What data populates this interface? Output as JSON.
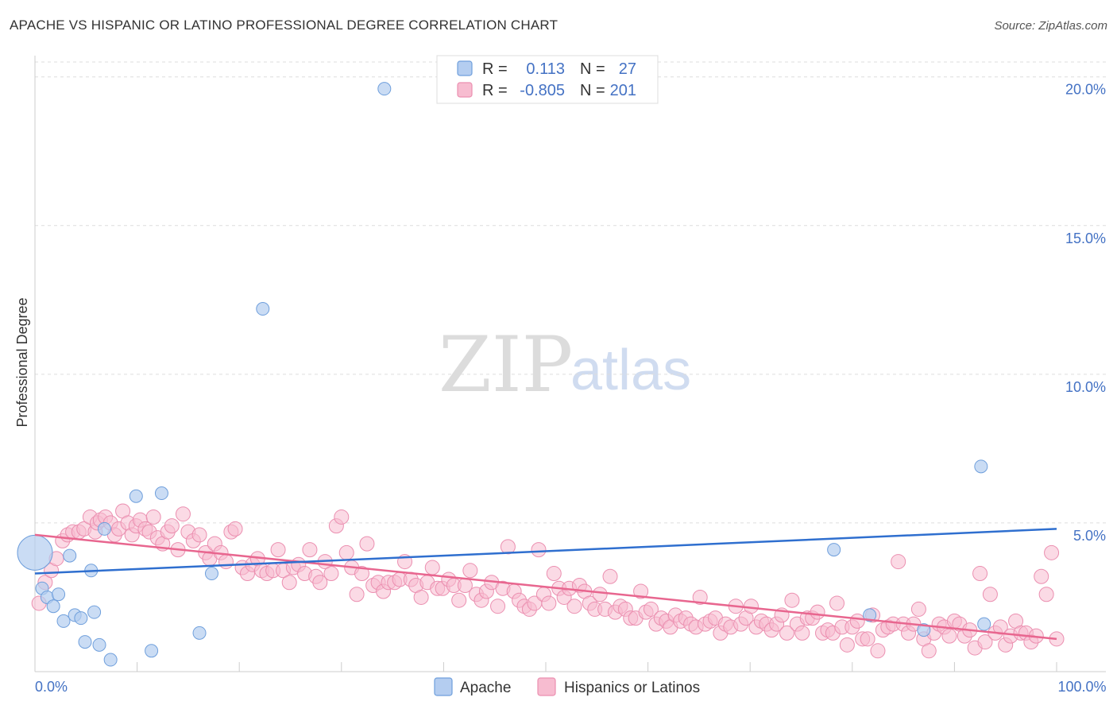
{
  "title": "APACHE VS HISPANIC OR LATINO PROFESSIONAL DEGREE CORRELATION CHART",
  "source": "Source: ZipAtlas.com",
  "watermark": {
    "zip": "ZIP",
    "atlas": "atlas"
  },
  "colors": {
    "apache_fill": "#b4cdf0",
    "apache_stroke": "#6f9fdc",
    "apache_line": "#2f6fcf",
    "hispanic_fill": "#f7bcd0",
    "hispanic_stroke": "#eb8fb0",
    "hispanic_line": "#e8668f",
    "grid": "#dddddd",
    "axis_label": "#4472c4"
  },
  "legend": {
    "r_label": "R =",
    "n_label": "N =",
    "apache": {
      "r": "0.113",
      "n": "27"
    },
    "hispanic": {
      "r": "-0.805",
      "n": "201"
    }
  },
  "chart_data": {
    "type": "scatter",
    "title": "APACHE VS HISPANIC OR LATINO PROFESSIONAL DEGREE CORRELATION CHART",
    "xlabel": "",
    "ylabel": "Professional Degree",
    "xlim": [
      0,
      100
    ],
    "ylim": [
      0,
      20.5
    ],
    "x_ticks": [
      0,
      100
    ],
    "x_tick_labels": [
      "0.0%",
      "100.0%"
    ],
    "y_ticks": [
      5,
      10,
      15,
      20
    ],
    "y_tick_labels": [
      "5.0%",
      "10.0%",
      "15.0%",
      "20.0%"
    ],
    "grid": true,
    "legend_position": "top-center",
    "series": [
      {
        "name": "Apache",
        "trend": {
          "x": [
            0,
            100
          ],
          "y": [
            3.3,
            4.8
          ]
        },
        "points": [
          {
            "x": 0.0,
            "y": 4.0,
            "big": true
          },
          {
            "x": 0.7,
            "y": 2.8
          },
          {
            "x": 1.2,
            "y": 2.5
          },
          {
            "x": 1.8,
            "y": 2.2
          },
          {
            "x": 2.3,
            "y": 2.6
          },
          {
            "x": 2.8,
            "y": 1.7
          },
          {
            "x": 3.4,
            "y": 3.9
          },
          {
            "x": 3.9,
            "y": 1.9
          },
          {
            "x": 4.5,
            "y": 1.8
          },
          {
            "x": 4.9,
            "y": 1.0
          },
          {
            "x": 5.5,
            "y": 3.4
          },
          {
            "x": 5.8,
            "y": 2.0
          },
          {
            "x": 6.3,
            "y": 0.9
          },
          {
            "x": 6.8,
            "y": 4.8
          },
          {
            "x": 7.4,
            "y": 0.4
          },
          {
            "x": 9.9,
            "y": 5.9
          },
          {
            "x": 11.4,
            "y": 0.7
          },
          {
            "x": 12.4,
            "y": 6.0
          },
          {
            "x": 16.1,
            "y": 1.3
          },
          {
            "x": 17.3,
            "y": 3.3
          },
          {
            "x": 22.3,
            "y": 12.2
          },
          {
            "x": 34.2,
            "y": 19.6
          },
          {
            "x": 78.2,
            "y": 4.1
          },
          {
            "x": 81.7,
            "y": 1.9
          },
          {
            "x": 87.0,
            "y": 1.4
          },
          {
            "x": 92.6,
            "y": 6.9
          },
          {
            "x": 92.9,
            "y": 1.6
          }
        ]
      },
      {
        "name": "Hispanics or Latinos",
        "trend": {
          "x": [
            0,
            100
          ],
          "y": [
            4.6,
            1.1
          ]
        },
        "points": [
          {
            "x": 0.4,
            "y": 2.3
          },
          {
            "x": 1.0,
            "y": 3.0
          },
          {
            "x": 1.6,
            "y": 3.4
          },
          {
            "x": 2.1,
            "y": 3.8
          },
          {
            "x": 2.7,
            "y": 4.4
          },
          {
            "x": 3.2,
            "y": 4.6
          },
          {
            "x": 3.7,
            "y": 4.7
          },
          {
            "x": 4.3,
            "y": 4.7
          },
          {
            "x": 4.8,
            "y": 4.8
          },
          {
            "x": 5.4,
            "y": 5.2
          },
          {
            "x": 5.9,
            "y": 4.7
          },
          {
            "x": 6.1,
            "y": 5.0
          },
          {
            "x": 6.4,
            "y": 5.1
          },
          {
            "x": 6.9,
            "y": 5.2
          },
          {
            "x": 7.4,
            "y": 5.0
          },
          {
            "x": 7.8,
            "y": 4.6
          },
          {
            "x": 8.2,
            "y": 4.8
          },
          {
            "x": 8.6,
            "y": 5.4
          },
          {
            "x": 9.1,
            "y": 5.0
          },
          {
            "x": 9.5,
            "y": 4.6
          },
          {
            "x": 9.9,
            "y": 4.9
          },
          {
            "x": 10.3,
            "y": 5.1
          },
          {
            "x": 10.8,
            "y": 4.8
          },
          {
            "x": 11.2,
            "y": 4.7
          },
          {
            "x": 11.6,
            "y": 5.2
          },
          {
            "x": 12.0,
            "y": 4.5
          },
          {
            "x": 12.5,
            "y": 4.3
          },
          {
            "x": 13.0,
            "y": 4.7
          },
          {
            "x": 13.4,
            "y": 4.9
          },
          {
            "x": 14.0,
            "y": 4.1
          },
          {
            "x": 14.5,
            "y": 5.3
          },
          {
            "x": 15.0,
            "y": 4.7
          },
          {
            "x": 15.5,
            "y": 4.4
          },
          {
            "x": 16.1,
            "y": 4.6
          },
          {
            "x": 16.7,
            "y": 4.0
          },
          {
            "x": 17.1,
            "y": 3.8
          },
          {
            "x": 17.6,
            "y": 4.3
          },
          {
            "x": 18.2,
            "y": 4.0
          },
          {
            "x": 18.7,
            "y": 3.7
          },
          {
            "x": 19.2,
            "y": 4.7
          },
          {
            "x": 19.6,
            "y": 4.8
          },
          {
            "x": 20.3,
            "y": 3.5
          },
          {
            "x": 20.8,
            "y": 3.3
          },
          {
            "x": 21.3,
            "y": 3.6
          },
          {
            "x": 21.8,
            "y": 3.8
          },
          {
            "x": 22.2,
            "y": 3.4
          },
          {
            "x": 22.7,
            "y": 3.3
          },
          {
            "x": 23.3,
            "y": 3.4
          },
          {
            "x": 23.8,
            "y": 4.1
          },
          {
            "x": 24.3,
            "y": 3.4
          },
          {
            "x": 24.9,
            "y": 3.0
          },
          {
            "x": 25.3,
            "y": 3.5
          },
          {
            "x": 25.8,
            "y": 3.6
          },
          {
            "x": 26.4,
            "y": 3.3
          },
          {
            "x": 26.9,
            "y": 4.1
          },
          {
            "x": 27.5,
            "y": 3.2
          },
          {
            "x": 27.9,
            "y": 3.0
          },
          {
            "x": 28.4,
            "y": 3.7
          },
          {
            "x": 29.0,
            "y": 3.3
          },
          {
            "x": 29.5,
            "y": 4.9
          },
          {
            "x": 30.0,
            "y": 5.2
          },
          {
            "x": 30.5,
            "y": 4.0
          },
          {
            "x": 31.0,
            "y": 3.5
          },
          {
            "x": 31.5,
            "y": 2.6
          },
          {
            "x": 32.0,
            "y": 3.3
          },
          {
            "x": 32.5,
            "y": 4.3
          },
          {
            "x": 33.1,
            "y": 2.9
          },
          {
            "x": 33.6,
            "y": 3.0
          },
          {
            "x": 34.1,
            "y": 2.7
          },
          {
            "x": 34.6,
            "y": 3.0
          },
          {
            "x": 35.2,
            "y": 3.0
          },
          {
            "x": 35.7,
            "y": 3.1
          },
          {
            "x": 36.2,
            "y": 3.7
          },
          {
            "x": 36.8,
            "y": 3.1
          },
          {
            "x": 37.3,
            "y": 2.9
          },
          {
            "x": 37.8,
            "y": 2.5
          },
          {
            "x": 38.4,
            "y": 3.0
          },
          {
            "x": 38.9,
            "y": 3.5
          },
          {
            "x": 39.4,
            "y": 2.8
          },
          {
            "x": 39.9,
            "y": 2.8
          },
          {
            "x": 40.5,
            "y": 3.1
          },
          {
            "x": 41.0,
            "y": 2.9
          },
          {
            "x": 41.5,
            "y": 2.4
          },
          {
            "x": 42.1,
            "y": 2.9
          },
          {
            "x": 42.6,
            "y": 3.4
          },
          {
            "x": 43.2,
            "y": 2.6
          },
          {
            "x": 43.7,
            "y": 2.4
          },
          {
            "x": 44.2,
            "y": 2.7
          },
          {
            "x": 44.7,
            "y": 3.0
          },
          {
            "x": 45.3,
            "y": 2.2
          },
          {
            "x": 45.8,
            "y": 2.8
          },
          {
            "x": 46.3,
            "y": 4.2
          },
          {
            "x": 46.9,
            "y": 2.7
          },
          {
            "x": 47.4,
            "y": 2.4
          },
          {
            "x": 47.9,
            "y": 2.2
          },
          {
            "x": 48.4,
            "y": 2.1
          },
          {
            "x": 48.9,
            "y": 2.3
          },
          {
            "x": 49.3,
            "y": 4.1
          },
          {
            "x": 49.8,
            "y": 2.6
          },
          {
            "x": 50.3,
            "y": 2.3
          },
          {
            "x": 50.8,
            "y": 3.3
          },
          {
            "x": 51.3,
            "y": 2.8
          },
          {
            "x": 51.8,
            "y": 2.5
          },
          {
            "x": 52.3,
            "y": 2.8
          },
          {
            "x": 52.8,
            "y": 2.2
          },
          {
            "x": 53.3,
            "y": 2.9
          },
          {
            "x": 53.8,
            "y": 2.7
          },
          {
            "x": 54.3,
            "y": 2.3
          },
          {
            "x": 54.8,
            "y": 2.1
          },
          {
            "x": 55.3,
            "y": 2.6
          },
          {
            "x": 55.8,
            "y": 2.1
          },
          {
            "x": 56.3,
            "y": 3.2
          },
          {
            "x": 56.8,
            "y": 2.0
          },
          {
            "x": 57.3,
            "y": 2.2
          },
          {
            "x": 57.8,
            "y": 2.1
          },
          {
            "x": 58.3,
            "y": 1.8
          },
          {
            "x": 58.8,
            "y": 1.8
          },
          {
            "x": 59.3,
            "y": 2.7
          },
          {
            "x": 59.8,
            "y": 2.0
          },
          {
            "x": 60.3,
            "y": 2.1
          },
          {
            "x": 60.8,
            "y": 1.6
          },
          {
            "x": 61.3,
            "y": 1.8
          },
          {
            "x": 61.8,
            "y": 1.7
          },
          {
            "x": 62.2,
            "y": 1.5
          },
          {
            "x": 62.7,
            "y": 1.9
          },
          {
            "x": 63.2,
            "y": 1.7
          },
          {
            "x": 63.7,
            "y": 1.8
          },
          {
            "x": 64.2,
            "y": 1.6
          },
          {
            "x": 64.7,
            "y": 1.5
          },
          {
            "x": 65.1,
            "y": 2.5
          },
          {
            "x": 65.6,
            "y": 1.6
          },
          {
            "x": 66.1,
            "y": 1.7
          },
          {
            "x": 66.6,
            "y": 1.8
          },
          {
            "x": 67.1,
            "y": 1.3
          },
          {
            "x": 67.6,
            "y": 1.6
          },
          {
            "x": 68.1,
            "y": 1.5
          },
          {
            "x": 68.6,
            "y": 2.2
          },
          {
            "x": 69.1,
            "y": 1.6
          },
          {
            "x": 69.6,
            "y": 1.8
          },
          {
            "x": 70.1,
            "y": 2.2
          },
          {
            "x": 70.6,
            "y": 1.5
          },
          {
            "x": 71.1,
            "y": 1.7
          },
          {
            "x": 71.6,
            "y": 1.6
          },
          {
            "x": 72.1,
            "y": 1.4
          },
          {
            "x": 72.6,
            "y": 1.6
          },
          {
            "x": 73.1,
            "y": 1.9
          },
          {
            "x": 73.6,
            "y": 1.3
          },
          {
            "x": 74.1,
            "y": 2.4
          },
          {
            "x": 74.6,
            "y": 1.6
          },
          {
            "x": 75.1,
            "y": 1.3
          },
          {
            "x": 75.6,
            "y": 1.8
          },
          {
            "x": 76.1,
            "y": 1.8
          },
          {
            "x": 76.6,
            "y": 2.0
          },
          {
            "x": 77.1,
            "y": 1.3
          },
          {
            "x": 77.6,
            "y": 1.4
          },
          {
            "x": 78.1,
            "y": 1.3
          },
          {
            "x": 78.5,
            "y": 2.3
          },
          {
            "x": 79.0,
            "y": 1.5
          },
          {
            "x": 79.5,
            "y": 0.9
          },
          {
            "x": 80.0,
            "y": 1.5
          },
          {
            "x": 80.5,
            "y": 1.7
          },
          {
            "x": 81.0,
            "y": 1.1
          },
          {
            "x": 81.5,
            "y": 1.1
          },
          {
            "x": 82.0,
            "y": 1.9
          },
          {
            "x": 82.5,
            "y": 0.7
          },
          {
            "x": 83.0,
            "y": 1.4
          },
          {
            "x": 83.5,
            "y": 1.5
          },
          {
            "x": 84.0,
            "y": 1.6
          },
          {
            "x": 84.5,
            "y": 3.7
          },
          {
            "x": 85.0,
            "y": 1.6
          },
          {
            "x": 85.5,
            "y": 1.3
          },
          {
            "x": 86.0,
            "y": 1.6
          },
          {
            "x": 86.5,
            "y": 2.1
          },
          {
            "x": 87.0,
            "y": 1.1
          },
          {
            "x": 87.5,
            "y": 0.7
          },
          {
            "x": 88.0,
            "y": 1.3
          },
          {
            "x": 88.5,
            "y": 1.6
          },
          {
            "x": 89.0,
            "y": 1.5
          },
          {
            "x": 89.5,
            "y": 1.2
          },
          {
            "x": 90.0,
            "y": 1.7
          },
          {
            "x": 90.5,
            "y": 1.6
          },
          {
            "x": 91.0,
            "y": 1.2
          },
          {
            "x": 91.5,
            "y": 1.4
          },
          {
            "x": 92.0,
            "y": 0.8
          },
          {
            "x": 92.5,
            "y": 3.3
          },
          {
            "x": 93.0,
            "y": 1.0
          },
          {
            "x": 93.5,
            "y": 2.6
          },
          {
            "x": 94.0,
            "y": 1.3
          },
          {
            "x": 94.5,
            "y": 1.5
          },
          {
            "x": 95.0,
            "y": 0.9
          },
          {
            "x": 95.5,
            "y": 1.2
          },
          {
            "x": 96.0,
            "y": 1.7
          },
          {
            "x": 96.5,
            "y": 1.3
          },
          {
            "x": 97.0,
            "y": 1.3
          },
          {
            "x": 97.5,
            "y": 1.0
          },
          {
            "x": 98.0,
            "y": 1.2
          },
          {
            "x": 98.5,
            "y": 3.2
          },
          {
            "x": 99.0,
            "y": 2.6
          },
          {
            "x": 99.5,
            "y": 4.0
          },
          {
            "x": 100.0,
            "y": 1.1
          }
        ]
      }
    ]
  }
}
